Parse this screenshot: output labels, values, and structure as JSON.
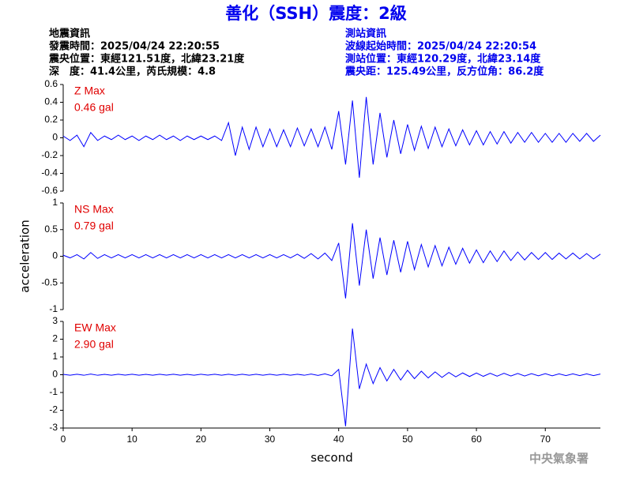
{
  "header": {
    "title": "善化（SSH）震度：2級",
    "left": [
      "地震資訊",
      "發震時間：2025/04/24 22:20:55",
      "震央位置：東經121.51度，北緯23.21度",
      "深　度：41.4公里，芮氏規模：4.8"
    ],
    "right": [
      "測站資訊",
      "波線起始時間：2025/04/24 22:20:54",
      "測站位置：東經120.29度，北緯23.14度",
      "震央距：125.49公里，反方位角：86.2度"
    ]
  },
  "footer": "中央氣象署",
  "chart_data": [
    {
      "type": "line",
      "annotation": [
        "Z Max",
        "0.46 gal"
      ],
      "annotation_color": "#e00000",
      "color": "#0000ff",
      "xlim": [
        0,
        78
      ],
      "ylim": [
        -0.6,
        0.6
      ],
      "yticks": [
        -0.6,
        -0.4,
        -0.2,
        0,
        0.2,
        0.4,
        0.6
      ],
      "x": [
        0,
        1,
        2,
        3,
        4,
        5,
        6,
        7,
        8,
        9,
        10,
        11,
        12,
        13,
        14,
        15,
        16,
        17,
        18,
        19,
        20,
        21,
        22,
        23,
        24,
        25,
        26,
        27,
        28,
        29,
        30,
        31,
        32,
        33,
        34,
        35,
        36,
        37,
        38,
        39,
        40,
        41,
        42,
        43,
        44,
        45,
        46,
        47,
        48,
        49,
        50,
        51,
        52,
        53,
        54,
        55,
        56,
        57,
        58,
        59,
        60,
        61,
        62,
        63,
        64,
        65,
        66,
        67,
        68,
        69,
        70,
        71,
        72,
        73,
        74,
        75,
        76,
        77,
        78
      ],
      "values": [
        0.02,
        -0.03,
        0.03,
        -0.1,
        0.06,
        -0.03,
        0.02,
        -0.02,
        0.03,
        -0.02,
        0.02,
        -0.03,
        0.02,
        -0.02,
        0.03,
        -0.02,
        0.02,
        -0.03,
        0.02,
        -0.02,
        0.02,
        -0.02,
        0.02,
        -0.03,
        0.17,
        -0.2,
        0.12,
        -0.13,
        0.12,
        -0.1,
        0.1,
        -0.1,
        0.09,
        -0.1,
        0.11,
        -0.09,
        0.1,
        -0.1,
        0.12,
        -0.13,
        0.3,
        -0.3,
        0.42,
        -0.45,
        0.46,
        -0.3,
        0.28,
        -0.22,
        0.2,
        -0.18,
        0.15,
        -0.14,
        0.13,
        -0.12,
        0.12,
        -0.1,
        0.1,
        -0.09,
        0.09,
        -0.08,
        0.08,
        -0.08,
        0.07,
        -0.07,
        0.07,
        -0.06,
        0.06,
        -0.05,
        0.06,
        -0.05,
        0.05,
        -0.05,
        0.05,
        -0.05,
        0.05,
        -0.04,
        0.05,
        -0.04,
        0.03
      ]
    },
    {
      "type": "line",
      "annotation": [
        "NS Max",
        "0.79 gal"
      ],
      "annotation_color": "#e00000",
      "color": "#0000ff",
      "xlim": [
        0,
        78
      ],
      "ylim": [
        -1,
        1
      ],
      "yticks": [
        -1,
        -0.5,
        0,
        0.5,
        1
      ],
      "ylabel": "acceleration",
      "x": [
        0,
        1,
        2,
        3,
        4,
        5,
        6,
        7,
        8,
        9,
        10,
        11,
        12,
        13,
        14,
        15,
        16,
        17,
        18,
        19,
        20,
        21,
        22,
        23,
        24,
        25,
        26,
        27,
        28,
        29,
        30,
        31,
        32,
        33,
        34,
        35,
        36,
        37,
        38,
        39,
        40,
        41,
        42,
        43,
        44,
        45,
        46,
        47,
        48,
        49,
        50,
        51,
        52,
        53,
        54,
        55,
        56,
        57,
        58,
        59,
        60,
        61,
        62,
        63,
        64,
        65,
        66,
        67,
        68,
        69,
        70,
        71,
        72,
        73,
        74,
        75,
        76,
        77,
        78
      ],
      "values": [
        0.02,
        -0.03,
        0.03,
        -0.05,
        0.07,
        -0.04,
        0.03,
        -0.03,
        0.03,
        -0.03,
        0.03,
        -0.03,
        0.03,
        -0.03,
        0.03,
        -0.03,
        0.03,
        -0.03,
        0.03,
        -0.03,
        0.03,
        -0.03,
        0.03,
        -0.03,
        0.03,
        -0.03,
        0.03,
        -0.03,
        0.03,
        -0.03,
        0.03,
        -0.03,
        0.03,
        -0.03,
        0.04,
        -0.04,
        0.05,
        -0.05,
        0.06,
        -0.08,
        0.25,
        -0.79,
        0.62,
        -0.55,
        0.5,
        -0.42,
        0.35,
        -0.35,
        0.3,
        -0.3,
        0.28,
        -0.25,
        0.22,
        -0.2,
        0.2,
        -0.18,
        0.17,
        -0.15,
        0.15,
        -0.13,
        0.12,
        -0.12,
        0.1,
        -0.1,
        0.1,
        -0.08,
        0.08,
        -0.07,
        0.07,
        -0.06,
        0.07,
        -0.06,
        0.06,
        -0.05,
        0.06,
        -0.05,
        0.05,
        -0.05,
        0.04
      ]
    },
    {
      "type": "line",
      "annotation": [
        "EW Max",
        "2.90 gal"
      ],
      "annotation_color": "#e00000",
      "color": "#0000ff",
      "xlim": [
        0,
        78
      ],
      "ylim": [
        -3,
        3
      ],
      "yticks": [
        -3,
        -2,
        -1,
        0,
        1,
        2,
        3
      ],
      "xticks": [
        0,
        10,
        20,
        30,
        40,
        50,
        60,
        70
      ],
      "xlabel": "second",
      "x": [
        0,
        1,
        2,
        3,
        4,
        5,
        6,
        7,
        8,
        9,
        10,
        11,
        12,
        13,
        14,
        15,
        16,
        17,
        18,
        19,
        20,
        21,
        22,
        23,
        24,
        25,
        26,
        27,
        28,
        29,
        30,
        31,
        32,
        33,
        34,
        35,
        36,
        37,
        38,
        39,
        40,
        41,
        42,
        43,
        44,
        45,
        46,
        47,
        48,
        49,
        50,
        51,
        52,
        53,
        54,
        55,
        56,
        57,
        58,
        59,
        60,
        61,
        62,
        63,
        64,
        65,
        66,
        67,
        68,
        69,
        70,
        71,
        72,
        73,
        74,
        75,
        76,
        77,
        78
      ],
      "values": [
        0.02,
        -0.03,
        0.03,
        -0.03,
        0.04,
        -0.03,
        0.02,
        -0.03,
        0.03,
        -0.02,
        0.03,
        -0.03,
        0.02,
        -0.03,
        0.03,
        -0.02,
        0.03,
        -0.03,
        0.02,
        -0.03,
        0.03,
        -0.02,
        0.03,
        -0.03,
        0.03,
        -0.03,
        0.03,
        -0.03,
        0.03,
        -0.03,
        0.03,
        -0.03,
        0.03,
        -0.03,
        0.03,
        -0.03,
        0.04,
        -0.04,
        0.05,
        -0.06,
        0.3,
        -2.9,
        2.6,
        -0.8,
        0.6,
        -0.5,
        0.4,
        -0.35,
        0.3,
        -0.3,
        0.25,
        -0.22,
        0.2,
        -0.18,
        0.16,
        -0.15,
        0.13,
        -0.12,
        0.1,
        -0.1,
        0.1,
        -0.09,
        0.08,
        -0.08,
        0.08,
        -0.07,
        0.07,
        -0.07,
        0.06,
        -0.06,
        0.06,
        -0.06,
        0.05,
        -0.05,
        0.05,
        -0.05,
        0.05,
        -0.05,
        0.04
      ]
    }
  ]
}
